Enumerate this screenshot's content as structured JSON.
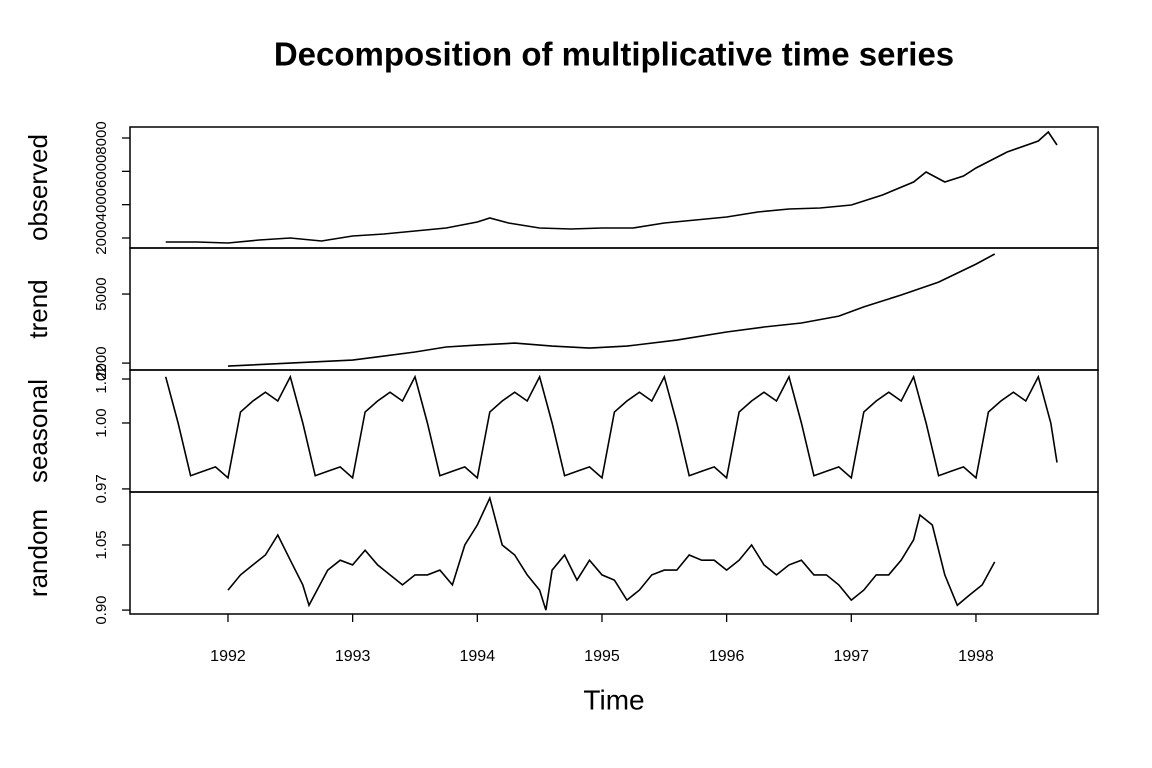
{
  "chart_data": {
    "type": "line",
    "title": "Decomposition of multiplicative time series",
    "xlabel": "Time",
    "xlim": [
      1991.214,
      1998.979
    ],
    "xticks": [
      1992,
      1993,
      1994,
      1995,
      1996,
      1997,
      1998
    ],
    "color": "#000000",
    "panels": [
      {
        "ylabel": "observed",
        "ylim": [
          1400,
          8660
        ],
        "yticks": [
          2000,
          4000,
          6000,
          8000
        ],
        "x": [
          1991.5,
          1991.75,
          1992.0,
          1992.25,
          1992.5,
          1992.75,
          1993.0,
          1993.25,
          1993.5,
          1993.75,
          1994.0,
          1994.1,
          1994.25,
          1994.5,
          1994.75,
          1995.0,
          1995.25,
          1995.5,
          1995.75,
          1996.0,
          1996.25,
          1996.5,
          1996.75,
          1997.0,
          1997.25,
          1997.5,
          1997.6,
          1997.75,
          1997.9,
          1998.0,
          1998.25,
          1998.5,
          1998.58,
          1998.65
        ],
        "values": [
          1760,
          1760,
          1700,
          1880,
          2000,
          1820,
          2120,
          2240,
          2420,
          2600,
          2960,
          3200,
          2900,
          2600,
          2540,
          2600,
          2600,
          2900,
          3080,
          3260,
          3560,
          3740,
          3800,
          3980,
          4580,
          5360,
          5960,
          5360,
          5720,
          6200,
          7160,
          7820,
          8360,
          7580
        ]
      },
      {
        "ylabel": "trend",
        "ylim": [
          1700,
          7000
        ],
        "yticks": [
          2000,
          5000
        ],
        "x": [
          1992.0,
          1992.5,
          1993.0,
          1993.5,
          1993.75,
          1994.0,
          1994.3,
          1994.6,
          1994.9,
          1995.2,
          1995.6,
          1996.0,
          1996.3,
          1996.6,
          1996.9,
          1997.1,
          1997.4,
          1997.7,
          1998.0,
          1998.15
        ],
        "values": [
          1870,
          2000,
          2130,
          2480,
          2700,
          2780,
          2870,
          2740,
          2650,
          2740,
          3000,
          3350,
          3570,
          3740,
          4040,
          4440,
          4960,
          5520,
          6300,
          6740
        ]
      },
      {
        "ylabel": "seasonal",
        "ylim": [
          0.9686,
          1.0241
        ],
        "yticks": [
          0.97,
          {
            "value": 1,
            "label": "1.00"
          },
          1.02
        ],
        "x": [
          1991.5,
          1991.6,
          1991.7,
          1991.8,
          1991.9,
          1992.0,
          1992.1,
          1992.2,
          1992.3,
          1992.4,
          1992.5,
          1992.6,
          1992.7,
          1992.8,
          1992.9,
          1993.0,
          1993.1,
          1993.2,
          1993.3,
          1993.4,
          1993.5,
          1993.6,
          1993.7,
          1993.8,
          1993.9,
          1994.0,
          1994.1,
          1994.2,
          1994.3,
          1994.4,
          1994.5,
          1994.6,
          1994.7,
          1994.8,
          1994.9,
          1995.0,
          1995.1,
          1995.2,
          1995.3,
          1995.4,
          1995.5,
          1995.6,
          1995.7,
          1995.8,
          1995.9,
          1996.0,
          1996.1,
          1996.2,
          1996.3,
          1996.4,
          1996.5,
          1996.6,
          1996.7,
          1996.8,
          1996.9,
          1997.0,
          1997.1,
          1997.2,
          1997.3,
          1997.4,
          1997.5,
          1997.6,
          1997.7,
          1997.8,
          1997.9,
          1998.0,
          1998.1,
          1998.2,
          1998.3,
          1998.4,
          1998.5,
          1998.6,
          1998.65
        ],
        "values": [
          1.021,
          1.0,
          0.976,
          0.978,
          0.98,
          0.975,
          1.005,
          1.01,
          1.014,
          1.01,
          1.021,
          1.0,
          0.976,
          0.978,
          0.98,
          0.975,
          1.005,
          1.01,
          1.014,
          1.01,
          1.021,
          1.0,
          0.976,
          0.978,
          0.98,
          0.975,
          1.005,
          1.01,
          1.014,
          1.01,
          1.021,
          1.0,
          0.976,
          0.978,
          0.98,
          0.975,
          1.005,
          1.01,
          1.014,
          1.01,
          1.021,
          1.0,
          0.976,
          0.978,
          0.98,
          0.975,
          1.005,
          1.01,
          1.014,
          1.01,
          1.021,
          1.0,
          0.976,
          0.978,
          0.98,
          0.975,
          1.005,
          1.01,
          1.014,
          1.01,
          1.021,
          1.0,
          0.976,
          0.978,
          0.98,
          0.975,
          1.005,
          1.01,
          1.014,
          1.01,
          1.021,
          1.0,
          0.982
        ]
      },
      {
        "ylabel": "random",
        "ylim": [
          0.891,
          1.172
        ],
        "yticks": [
          {
            "value": 0.9,
            "label": "0.90"
          },
          1.05
        ],
        "x": [
          1992.0,
          1992.1,
          1992.2,
          1992.3,
          1992.4,
          1992.5,
          1992.6,
          1992.65,
          1992.8,
          1992.9,
          1993.0,
          1993.1,
          1993.2,
          1993.3,
          1993.4,
          1993.5,
          1993.6,
          1993.7,
          1993.8,
          1993.9,
          1994.0,
          1994.1,
          1994.2,
          1994.3,
          1994.4,
          1994.5,
          1994.55,
          1994.6,
          1994.7,
          1994.8,
          1994.9,
          1995.0,
          1995.1,
          1995.2,
          1995.3,
          1995.4,
          1995.5,
          1995.6,
          1995.7,
          1995.8,
          1995.9,
          1996.0,
          1996.1,
          1996.2,
          1996.3,
          1996.4,
          1996.5,
          1996.6,
          1996.7,
          1996.8,
          1996.9,
          1997.0,
          1997.1,
          1997.2,
          1997.3,
          1997.4,
          1997.5,
          1997.55,
          1997.65,
          1997.75,
          1997.85,
          1997.95,
          1998.05,
          1998.15
        ],
        "values": [
          0.946,
          0.981,
          1.004,
          1.027,
          1.073,
          1.015,
          0.958,
          0.911,
          0.992,
          1.015,
          1.004,
          1.038,
          1.004,
          0.981,
          0.958,
          0.981,
          0.981,
          0.992,
          0.958,
          1.05,
          1.096,
          1.158,
          1.05,
          1.027,
          0.981,
          0.946,
          0.9,
          0.992,
          1.027,
          0.969,
          1.015,
          0.981,
          0.969,
          0.923,
          0.946,
          0.981,
          0.992,
          0.992,
          1.027,
          1.015,
          1.015,
          0.992,
          1.015,
          1.05,
          1.004,
          0.981,
          1.004,
          1.015,
          0.981,
          0.981,
          0.958,
          0.923,
          0.946,
          0.981,
          0.981,
          1.015,
          1.062,
          1.119,
          1.096,
          0.981,
          0.911,
          0.935,
          0.958,
          1.011
        ]
      }
    ]
  }
}
